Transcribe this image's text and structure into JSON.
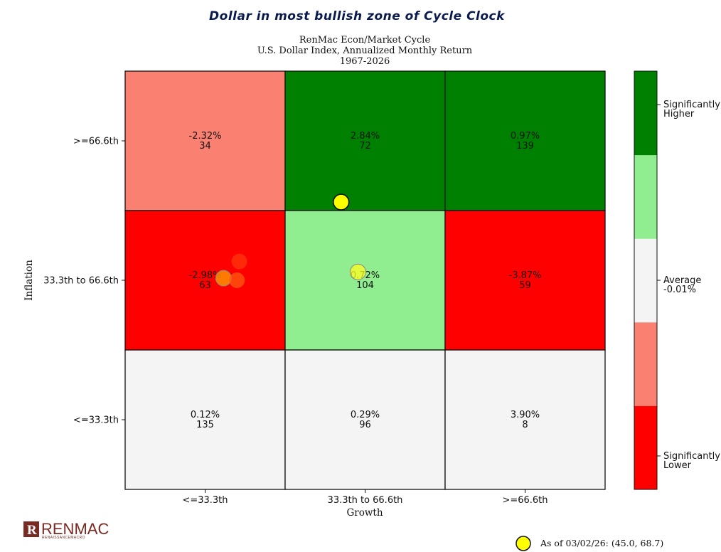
{
  "headline": "Dollar in most bullish zone of Cycle Clock",
  "chart_data": {
    "type": "heatmap",
    "title_lines": [
      "RenMac Econ/Market Cycle",
      "U.S. Dollar Index, Annualized Monthly Return",
      "1967-2026"
    ],
    "xlabel": "Growth",
    "ylabel": "Inflation",
    "x_categories": [
      "<=33.3th",
      "33.3th to 66.6th",
      ">=66.6th"
    ],
    "y_categories": [
      "<=33.3th",
      "33.3th to 66.6th",
      ">=66.6th"
    ],
    "cells": [
      {
        "row": 2,
        "col": 0,
        "ret": "-2.32%",
        "n": "34",
        "color": "#fa8072"
      },
      {
        "row": 2,
        "col": 1,
        "ret": "2.84%",
        "n": "72",
        "color": "#008000"
      },
      {
        "row": 2,
        "col": 2,
        "ret": "0.97%",
        "n": "139",
        "color": "#008000"
      },
      {
        "row": 1,
        "col": 0,
        "ret": "-2.98%",
        "n": "63",
        "color": "#ff0000"
      },
      {
        "row": 1,
        "col": 1,
        "ret": "0.72%",
        "n": "104",
        "color": "#90ee90"
      },
      {
        "row": 1,
        "col": 2,
        "ret": "-3.87%",
        "n": "59",
        "color": "#ff0000"
      },
      {
        "row": 0,
        "col": 0,
        "ret": "0.12%",
        "n": "135",
        "color": "#f4f4f4"
      },
      {
        "row": 0,
        "col": 1,
        "ret": "0.29%",
        "n": "96",
        "color": "#f4f4f4"
      },
      {
        "row": 0,
        "col": 2,
        "ret": "3.90%",
        "n": "8",
        "color": "#f4f4f4"
      }
    ],
    "colorbar": {
      "colors": [
        "#ff0000",
        "#fa8072",
        "#f4f4f4",
        "#90ee90",
        "#008000"
      ],
      "labels": [
        {
          "text": "Significantly\nLower",
          "level": 0.08
        },
        {
          "text": "Average\n-0.01%",
          "level": 0.5
        },
        {
          "text": "Significantly\nHigher",
          "level": 0.92
        }
      ]
    },
    "points": [
      {
        "x": 45.0,
        "y": 68.7,
        "color": "#ffff00",
        "opacity": 1.0,
        "edge": "#111111",
        "current": true
      },
      {
        "x": 48.5,
        "y": 52.0,
        "color": "#ffff20",
        "opacity": 0.75,
        "edge": "#888888"
      },
      {
        "x": 20.5,
        "y": 50.5,
        "color": "#ff9900",
        "opacity": 0.8,
        "edge": "#888888"
      },
      {
        "x": 23.3,
        "y": 50.0,
        "color": "#ff5a10",
        "opacity": 0.75,
        "edge": "none"
      },
      {
        "x": 23.8,
        "y": 54.5,
        "color": "#ff4a10",
        "opacity": 0.55,
        "edge": "none"
      }
    ],
    "xlim": [
      0,
      100
    ],
    "ylim": [
      0,
      100
    ],
    "legend": {
      "label": "As of 03/02/26:  (45.0, 68.7)",
      "placement": "bottom-right"
    }
  },
  "logo": {
    "name": "RENMAC",
    "sub": "RENAISSANCEMACRO",
    "mark": "R"
  }
}
